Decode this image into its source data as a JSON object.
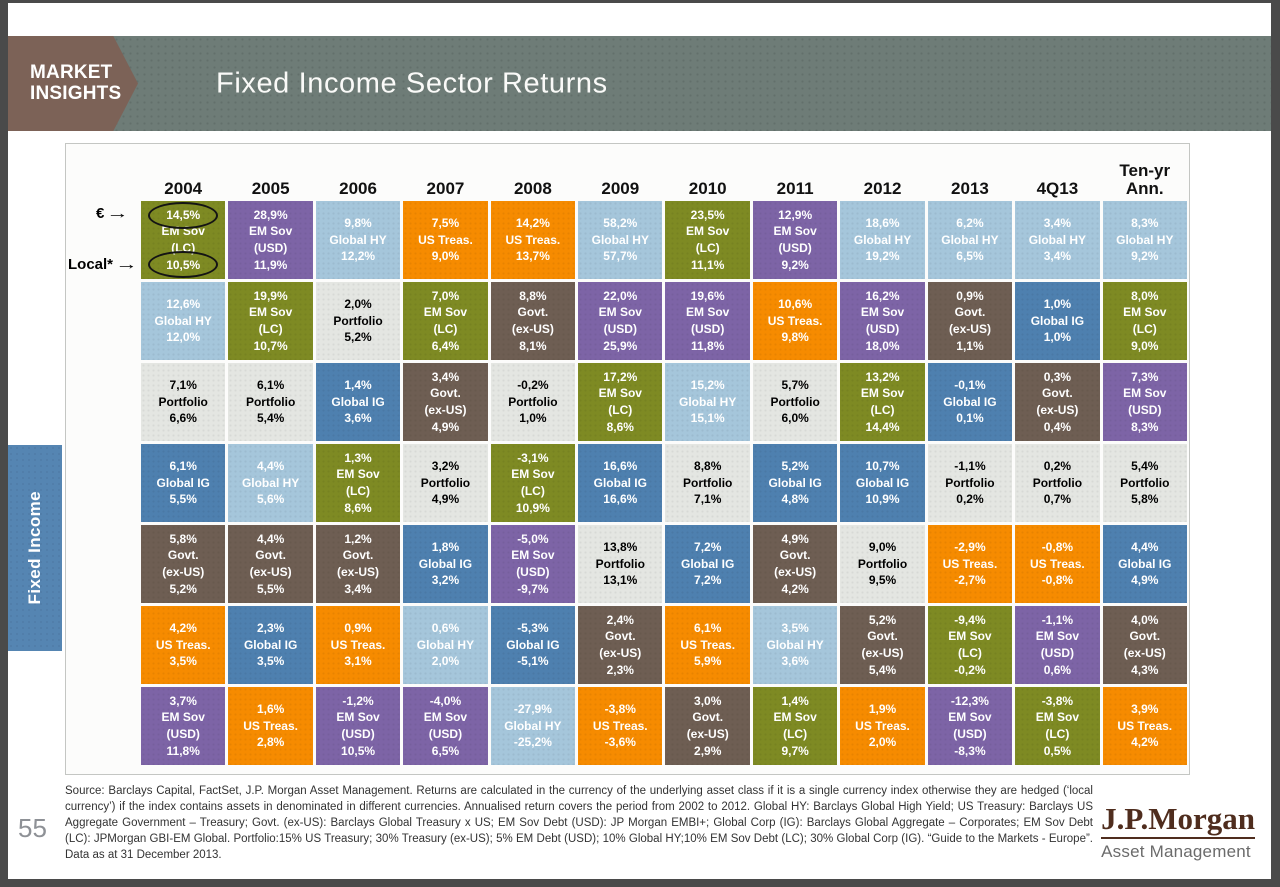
{
  "header": {
    "kicker_line1": "MARKET",
    "kicker_line2": "INSIGHTS",
    "title": "Fixed Income Sector Returns"
  },
  "side_tab": {
    "label": "Fixed Income"
  },
  "annotations": {
    "euro_label": "€",
    "local_label": "Local*",
    "arrow_glyph": "→"
  },
  "chart_data": {
    "type": "table",
    "title": "Fixed Income Sector Returns",
    "row_labels": {
      "top": "€",
      "bottom": "Local*"
    },
    "palette": {
      "EM Sov (LC)": {
        "bg": "#7E8A23",
        "fg": "#FFFFFF"
      },
      "EM Sov (USD)": {
        "bg": "#7D64A6",
        "fg": "#FFFFFF"
      },
      "Global HY": {
        "bg": "#A5C6DB",
        "fg": "#FFFFFF"
      },
      "US Treas.": {
        "bg": "#F68B00",
        "fg": "#FFFFFF"
      },
      "Portfolio": {
        "bg": "#E4E6E2",
        "fg": "#000000"
      },
      "Global IG": {
        "bg": "#4E80AF",
        "fg": "#FFFFFF"
      },
      "Govt. (ex-US)": {
        "bg": "#6E5E53",
        "fg": "#FFFFFF"
      }
    },
    "columns": [
      {
        "label": "2004",
        "cells": [
          {
            "eur": "14,5%",
            "asset": "EM Sov (LC)",
            "local": "10,5%"
          },
          {
            "eur": "12,6%",
            "asset": "Global HY",
            "local": "12,0%"
          },
          {
            "eur": "7,1%",
            "asset": "Portfolio",
            "local": "6,6%"
          },
          {
            "eur": "6,1%",
            "asset": "Global IG",
            "local": "5,5%"
          },
          {
            "eur": "5,8%",
            "asset": "Govt. (ex-US)",
            "local": "5,2%"
          },
          {
            "eur": "4,2%",
            "asset": "US Treas.",
            "local": "3,5%"
          },
          {
            "eur": "3,7%",
            "asset": "EM Sov (USD)",
            "local": "11,8%"
          }
        ]
      },
      {
        "label": "2005",
        "cells": [
          {
            "eur": "28,9%",
            "asset": "EM Sov (USD)",
            "local": "11,9%"
          },
          {
            "eur": "19,9%",
            "asset": "EM Sov (LC)",
            "local": "10,7%"
          },
          {
            "eur": "6,1%",
            "asset": "Portfolio",
            "local": "5,4%"
          },
          {
            "eur": "4,4%",
            "asset": "Global HY",
            "local": "5,6%"
          },
          {
            "eur": "4,4%",
            "asset": "Govt. (ex-US)",
            "local": "5,5%"
          },
          {
            "eur": "2,3%",
            "asset": "Global IG",
            "local": "3,5%"
          },
          {
            "eur": "1,6%",
            "asset": "US Treas.",
            "local": "2,8%"
          }
        ]
      },
      {
        "label": "2006",
        "cells": [
          {
            "eur": "9,8%",
            "asset": "Global HY",
            "local": "12,2%"
          },
          {
            "eur": "2,0%",
            "asset": "Portfolio",
            "local": "5,2%"
          },
          {
            "eur": "1,4%",
            "asset": "Global IG",
            "local": "3,6%"
          },
          {
            "eur": "1,3%",
            "asset": "EM Sov (LC)",
            "local": "8,6%"
          },
          {
            "eur": "1,2%",
            "asset": "Govt. (ex-US)",
            "local": "3,4%"
          },
          {
            "eur": "0,9%",
            "asset": "US Treas.",
            "local": "3,1%"
          },
          {
            "eur": "-1,2%",
            "asset": "EM Sov (USD)",
            "local": "10,5%"
          }
        ]
      },
      {
        "label": "2007",
        "cells": [
          {
            "eur": "7,5%",
            "asset": "US Treas.",
            "local": "9,0%"
          },
          {
            "eur": "7,0%",
            "asset": "EM Sov (LC)",
            "local": "6,4%"
          },
          {
            "eur": "3,4%",
            "asset": "Govt. (ex-US)",
            "local": "4,9%"
          },
          {
            "eur": "3,2%",
            "asset": "Portfolio",
            "local": "4,9%"
          },
          {
            "eur": "1,8%",
            "asset": "Global IG",
            "local": "3,2%"
          },
          {
            "eur": "0,6%",
            "asset": "Global HY",
            "local": "2,0%"
          },
          {
            "eur": "-4,0%",
            "asset": "EM Sov (USD)",
            "local": "6,5%"
          }
        ]
      },
      {
        "label": "2008",
        "cells": [
          {
            "eur": "14,2%",
            "asset": "US Treas.",
            "local": "13,7%"
          },
          {
            "eur": "8,8%",
            "asset": "Govt. (ex-US)",
            "local": "8,1%"
          },
          {
            "eur": "-0,2%",
            "asset": "Portfolio",
            "local": "1,0%"
          },
          {
            "eur": "-3,1%",
            "asset": "EM Sov (LC)",
            "local": "10,9%"
          },
          {
            "eur": "-5,0%",
            "asset": "EM Sov (USD)",
            "local": "-9,7%"
          },
          {
            "eur": "-5,3%",
            "asset": "Global IG",
            "local": "-5,1%"
          },
          {
            "eur": "-27,9%",
            "asset": "Global HY",
            "local": "-25,2%"
          }
        ]
      },
      {
        "label": "2009",
        "cells": [
          {
            "eur": "58,2%",
            "asset": "Global HY",
            "local": "57,7%"
          },
          {
            "eur": "22,0%",
            "asset": "EM Sov (USD)",
            "local": "25,9%"
          },
          {
            "eur": "17,2%",
            "asset": "EM Sov (LC)",
            "local": "8,6%"
          },
          {
            "eur": "16,6%",
            "asset": "Global IG",
            "local": "16,6%"
          },
          {
            "eur": "13,8%",
            "asset": "Portfolio",
            "local": "13,1%"
          },
          {
            "eur": "2,4%",
            "asset": "Govt. (ex-US)",
            "local": "2,3%"
          },
          {
            "eur": "-3,8%",
            "asset": "US Treas.",
            "local": "-3,6%"
          }
        ]
      },
      {
        "label": "2010",
        "cells": [
          {
            "eur": "23,5%",
            "asset": "EM Sov (LC)",
            "local": "11,1%"
          },
          {
            "eur": "19,6%",
            "asset": "EM Sov (USD)",
            "local": "11,8%"
          },
          {
            "eur": "15,2%",
            "asset": "Global HY",
            "local": "15,1%"
          },
          {
            "eur": "8,8%",
            "asset": "Portfolio",
            "local": "7,1%"
          },
          {
            "eur": "7,2%",
            "asset": "Global IG",
            "local": "7,2%"
          },
          {
            "eur": "6,1%",
            "asset": "US Treas.",
            "local": "5,9%"
          },
          {
            "eur": "3,0%",
            "asset": "Govt. (ex-US)",
            "local": "2,9%"
          }
        ]
      },
      {
        "label": "2011",
        "cells": [
          {
            "eur": "12,9%",
            "asset": "EM Sov (USD)",
            "local": "9,2%"
          },
          {
            "eur": "10,6%",
            "asset": "US Treas.",
            "local": "9,8%"
          },
          {
            "eur": "5,7%",
            "asset": "Portfolio",
            "local": "6,0%"
          },
          {
            "eur": "5,2%",
            "asset": "Global IG",
            "local": "4,8%"
          },
          {
            "eur": "4,9%",
            "asset": "Govt. (ex-US)",
            "local": "4,2%"
          },
          {
            "eur": "3,5%",
            "asset": "Global HY",
            "local": "3,6%"
          },
          {
            "eur": "1,4%",
            "asset": "EM Sov (LC)",
            "local": "9,7%"
          }
        ]
      },
      {
        "label": "2012",
        "cells": [
          {
            "eur": "18,6%",
            "asset": "Global HY",
            "local": "19,2%"
          },
          {
            "eur": "16,2%",
            "asset": "EM Sov (USD)",
            "local": "18,0%"
          },
          {
            "eur": "13,2%",
            "asset": "EM Sov (LC)",
            "local": "14,4%"
          },
          {
            "eur": "10,7%",
            "asset": "Global IG",
            "local": "10,9%"
          },
          {
            "eur": "9,0%",
            "asset": "Portfolio",
            "local": "9,5%"
          },
          {
            "eur": "5,2%",
            "asset": "Govt. (ex-US)",
            "local": "5,4%"
          },
          {
            "eur": "1,9%",
            "asset": "US Treas.",
            "local": "2,0%"
          }
        ]
      },
      {
        "label": "2013",
        "cells": [
          {
            "eur": "6,2%",
            "asset": "Global HY",
            "local": "6,5%"
          },
          {
            "eur": "0,9%",
            "asset": "Govt. (ex-US)",
            "local": "1,1%"
          },
          {
            "eur": "-0,1%",
            "asset": "Global IG",
            "local": "0,1%"
          },
          {
            "eur": "-1,1%",
            "asset": "Portfolio",
            "local": "0,2%"
          },
          {
            "eur": "-2,9%",
            "asset": "US Treas.",
            "local": "-2,7%"
          },
          {
            "eur": "-9,4%",
            "asset": "EM Sov (LC)",
            "local": "-0,2%"
          },
          {
            "eur": "-12,3%",
            "asset": "EM Sov (USD)",
            "local": "-8,3%"
          }
        ]
      },
      {
        "label": "4Q13",
        "cells": [
          {
            "eur": "3,4%",
            "asset": "Global HY",
            "local": "3,4%"
          },
          {
            "eur": "1,0%",
            "asset": "Global IG",
            "local": "1,0%"
          },
          {
            "eur": "0,3%",
            "asset": "Govt. (ex-US)",
            "local": "0,4%"
          },
          {
            "eur": "0,2%",
            "asset": "Portfolio",
            "local": "0,7%"
          },
          {
            "eur": "-0,8%",
            "asset": "US Treas.",
            "local": "-0,8%"
          },
          {
            "eur": "-1,1%",
            "asset": "EM Sov (USD)",
            "local": "0,6%"
          },
          {
            "eur": "-3,8%",
            "asset": "EM Sov (LC)",
            "local": "0,5%"
          }
        ]
      },
      {
        "label": "Ten-yr Ann.",
        "cells": [
          {
            "eur": "8,3%",
            "asset": "Global HY",
            "local": "9,2%"
          },
          {
            "eur": "8,0%",
            "asset": "EM Sov (LC)",
            "local": "9,0%"
          },
          {
            "eur": "7,3%",
            "asset": "EM Sov (USD)",
            "local": "8,3%"
          },
          {
            "eur": "5,4%",
            "asset": "Portfolio",
            "local": "5,8%"
          },
          {
            "eur": "4,4%",
            "asset": "Global IG",
            "local": "4,9%"
          },
          {
            "eur": "4,0%",
            "asset": "Govt. (ex-US)",
            "local": "4,3%"
          },
          {
            "eur": "3,9%",
            "asset": "US Treas.",
            "local": "4,2%"
          }
        ]
      }
    ]
  },
  "footnote": "Source: Barclays Capital, FactSet, J.P. Morgan Asset Management. Returns are calculated in the currency of the underlying asset class if it is a single currency index otherwise they are hedged (‘local currency’) if the index contains assets in denominated in different currencies. Annualised return covers the period from 2002 to 2012. Global HY: Barclays Global High Yield; US Treasury: Barclays US Aggregate Government – Treasury; Govt. (ex-US): Barclays Global Treasury x US; EM Sov Debt (USD): JP Morgan EMBI+; Global Corp (IG): Barclays Global Aggregate – Corporates; EM Sov Debt (LC): JPMorgan GBI-EM Global. Portfolio:15% US Treasury; 30% Treasury (ex-US); 5% EM Debt (USD); 10% Global HY;10% EM Sov Debt (LC); 30% Global Corp (IG). “Guide to the Markets - Europe”. Data as at 31 December 2013.",
  "page_number": "55",
  "logo": {
    "brand": "J.P.Morgan",
    "sub": "Asset Management"
  }
}
